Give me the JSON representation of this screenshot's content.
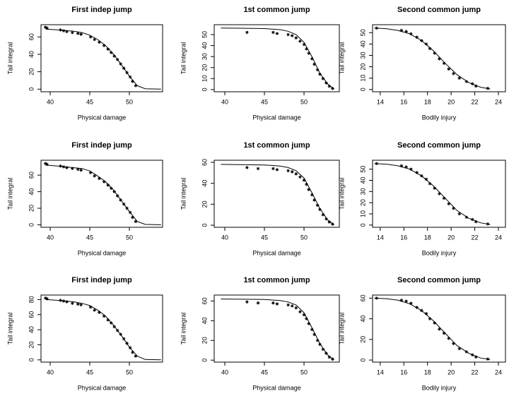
{
  "chart_data": [
    {
      "type": "line",
      "title": "First indep jump",
      "xlabel": "Physical damage",
      "ylabel": "Tail integral",
      "xlim": [
        38.84,
        54.2
      ],
      "ylim": [
        -3,
        74
      ],
      "xticks": [
        40,
        45,
        50
      ],
      "yticks": [
        0,
        20,
        40,
        60
      ],
      "line": {
        "x": [
          39.5,
          41,
          43,
          44,
          45,
          46,
          47,
          48,
          49,
          50,
          51,
          52,
          54
        ],
        "y": [
          69,
          68,
          66.5,
          65,
          62,
          57,
          50,
          40,
          28,
          15,
          4,
          0.5,
          0
        ]
      },
      "points": {
        "x": [
          39.4,
          39.6,
          41.3,
          41.7,
          42.1,
          42.8,
          43.5,
          43.9,
          45.1,
          45.6,
          46.2,
          46.8,
          47.3,
          47.7,
          48.1,
          48.5,
          48.9,
          49.3,
          49.7,
          50.1,
          50.4,
          50.8
        ],
        "y": [
          71,
          70,
          68,
          67,
          66,
          65,
          64,
          63,
          60,
          57,
          54,
          50,
          46,
          42,
          38,
          34,
          29,
          24,
          19,
          14,
          9,
          4
        ]
      }
    },
    {
      "type": "line",
      "title": "1st common jump",
      "xlabel": "Physical damage",
      "ylabel": "Tail integral",
      "xlim": [
        38.66,
        54.46
      ],
      "ylim": [
        -2,
        59
      ],
      "xticks": [
        40,
        45,
        50
      ],
      "yticks": [
        0,
        10,
        20,
        30,
        40,
        50
      ],
      "line": {
        "x": [
          39.5,
          42,
          45,
          47,
          48,
          49,
          50,
          51,
          52,
          53,
          53.8
        ],
        "y": [
          56,
          55.8,
          55.5,
          54.5,
          53,
          50,
          43,
          30,
          15,
          5,
          0.5
        ]
      },
      "points": {
        "x": [
          42.8,
          46.1,
          46.6,
          48,
          48.5,
          49,
          49.5,
          50,
          50.3,
          50.6,
          51,
          51.3,
          51.7,
          52,
          52.4,
          52.8,
          53.2,
          53.6
        ],
        "y": [
          52,
          52,
          51,
          50,
          49,
          47,
          44,
          41,
          37,
          33,
          28,
          23,
          18,
          14,
          10,
          6,
          3,
          1
        ]
      }
    },
    {
      "type": "line",
      "title": "Second common jump",
      "xlabel": "Bodily injury",
      "ylabel": "Tail integral",
      "xlim": [
        13.35,
        24.6
      ],
      "ylim": [
        -2,
        57
      ],
      "xticks": [
        14,
        16,
        18,
        20,
        22,
        24
      ],
      "yticks": [
        0,
        10,
        20,
        30,
        40,
        50
      ],
      "line": {
        "x": [
          13.5,
          14.5,
          15.5,
          16.5,
          17.5,
          18.5,
          19.5,
          20.5,
          21.5,
          22.5,
          23.3
        ],
        "y": [
          54,
          53.5,
          52,
          49,
          43,
          34,
          23,
          13,
          6,
          2,
          0.5
        ]
      },
      "points": {
        "x": [
          13.7,
          15.8,
          16.2,
          16.6,
          17.1,
          17.5,
          17.9,
          18.2,
          18.6,
          19,
          19.4,
          19.8,
          20.2,
          20.7,
          21.3,
          21.8,
          22.1,
          23.1
        ],
        "y": [
          54,
          52,
          51,
          49,
          46,
          43,
          40,
          36,
          32,
          27,
          23,
          18,
          14,
          10,
          7,
          5,
          3,
          1
        ]
      }
    },
    {
      "type": "line",
      "title": "First indep jump",
      "xlabel": "Physical damage",
      "ylabel": "Tail integral",
      "xlim": [
        38.84,
        54.2
      ],
      "ylim": [
        -3,
        78
      ],
      "xticks": [
        40,
        45,
        50
      ],
      "yticks": [
        0,
        20,
        40,
        60
      ],
      "line": {
        "x": [
          39.5,
          41,
          43,
          44,
          45,
          46,
          47,
          48,
          49,
          50,
          51,
          52,
          54
        ],
        "y": [
          72,
          71,
          69,
          68,
          65,
          59,
          52,
          42,
          29,
          16,
          4,
          0.5,
          0
        ]
      },
      "points": {
        "x": [
          39.4,
          39.6,
          41.3,
          41.7,
          42.1,
          42.8,
          43.5,
          43.9,
          45.1,
          45.6,
          46.2,
          46.8,
          47.3,
          47.7,
          48.1,
          48.5,
          48.9,
          49.3,
          49.7,
          50.1,
          50.4,
          50.8
        ],
        "y": [
          74,
          73,
          71,
          70,
          69,
          68,
          67,
          66,
          63,
          59,
          56,
          52,
          48,
          44,
          40,
          35,
          30,
          25,
          20,
          15,
          9,
          4
        ]
      }
    },
    {
      "type": "line",
      "title": "1st common jump",
      "xlabel": "Physical damage",
      "ylabel": "Tail integral",
      "xlim": [
        38.66,
        54.46
      ],
      "ylim": [
        -2,
        62
      ],
      "xticks": [
        40,
        45,
        50
      ],
      "yticks": [
        0,
        20,
        40,
        60
      ],
      "line": {
        "x": [
          39.5,
          42,
          45,
          47,
          48,
          49,
          50,
          51,
          52,
          53,
          53.8
        ],
        "y": [
          58,
          57.8,
          57.5,
          56.5,
          55,
          52,
          45,
          31,
          16,
          5,
          0.5
        ]
      },
      "points": {
        "x": [
          42.8,
          44.2,
          46.1,
          46.6,
          48,
          48.5,
          49,
          49.5,
          50,
          50.3,
          50.6,
          51,
          51.3,
          51.7,
          52,
          52.4,
          52.8,
          53.2,
          53.6
        ],
        "y": [
          55,
          54,
          54,
          53,
          52,
          51,
          49,
          46,
          43,
          39,
          34,
          29,
          24,
          19,
          15,
          10,
          6,
          3,
          1
        ]
      }
    },
    {
      "type": "line",
      "title": "Second common jump",
      "xlabel": "Bodily injury",
      "ylabel": "Tail integral",
      "xlim": [
        13.35,
        24.6
      ],
      "ylim": [
        -2,
        58
      ],
      "xticks": [
        14,
        16,
        18,
        20,
        22,
        24
      ],
      "yticks": [
        0,
        10,
        20,
        30,
        40,
        50
      ],
      "line": {
        "x": [
          13.5,
          14.5,
          15.5,
          16.5,
          17.5,
          18.5,
          19.5,
          20.5,
          21.5,
          22.5,
          23.3
        ],
        "y": [
          55,
          54.5,
          53,
          50,
          44,
          35,
          24,
          13,
          6,
          2,
          0.5
        ]
      },
      "points": {
        "x": [
          13.7,
          15.8,
          16.2,
          16.6,
          17.1,
          17.5,
          17.9,
          18.2,
          18.6,
          19,
          19.4,
          19.8,
          20.2,
          20.7,
          21.3,
          21.8,
          22.1,
          23.1
        ],
        "y": [
          55,
          53,
          52,
          50,
          47,
          44,
          41,
          37,
          33,
          28,
          24,
          19,
          15,
          10,
          7,
          5,
          3,
          1
        ]
      }
    },
    {
      "type": "line",
      "title": "First indep jump",
      "xlabel": "Physical damage",
      "ylabel": "Tail integral",
      "xlim": [
        38.84,
        54.2
      ],
      "ylim": [
        -3,
        86
      ],
      "xticks": [
        40,
        45,
        50
      ],
      "yticks": [
        0,
        20,
        40,
        60,
        80
      ],
      "line": {
        "x": [
          39.5,
          41,
          43,
          44,
          45,
          46,
          47,
          48,
          49,
          50,
          51,
          52,
          54
        ],
        "y": [
          80,
          79,
          77,
          75,
          72,
          66,
          58,
          46,
          32,
          17,
          5,
          0.5,
          0
        ]
      },
      "points": {
        "x": [
          39.4,
          39.6,
          41.3,
          41.7,
          42.1,
          42.8,
          43.5,
          43.9,
          45.1,
          45.6,
          46.2,
          46.8,
          47.3,
          47.7,
          48.1,
          48.5,
          48.9,
          49.3,
          49.7,
          50.1,
          50.4,
          50.8
        ],
        "y": [
          82,
          81,
          79,
          78,
          77,
          75,
          74,
          73,
          70,
          66,
          63,
          58,
          53,
          49,
          44,
          39,
          34,
          28,
          22,
          16,
          10,
          5
        ]
      }
    },
    {
      "type": "line",
      "title": "1st common jump",
      "xlabel": "Physical damage",
      "ylabel": "Tail integral",
      "xlim": [
        38.66,
        54.46
      ],
      "ylim": [
        -2,
        66
      ],
      "xticks": [
        40,
        45,
        50
      ],
      "yticks": [
        0,
        20,
        40,
        60
      ],
      "line": {
        "x": [
          39.5,
          42,
          45,
          47,
          48,
          49,
          50,
          51,
          52,
          53,
          53.8
        ],
        "y": [
          62,
          61.8,
          61.5,
          60.5,
          59,
          56,
          48,
          33,
          17,
          5,
          0.5
        ]
      },
      "points": {
        "x": [
          42.8,
          44.2,
          46.1,
          46.6,
          48,
          48.5,
          49,
          49.5,
          50,
          50.3,
          50.6,
          51,
          51.3,
          51.7,
          52,
          52.4,
          52.8,
          53.2,
          53.6
        ],
        "y": [
          59,
          58,
          58,
          57,
          56,
          55,
          53,
          49,
          46,
          42,
          37,
          31,
          26,
          20,
          16,
          11,
          7,
          3,
          1
        ]
      }
    },
    {
      "type": "line",
      "title": "Second common jump",
      "xlabel": "Bodily injury",
      "ylabel": "Tail integral",
      "xlim": [
        13.35,
        24.6
      ],
      "ylim": [
        -2,
        63
      ],
      "xticks": [
        14,
        16,
        18,
        20,
        22,
        24
      ],
      "yticks": [
        0,
        20,
        40,
        60
      ],
      "line": {
        "x": [
          13.5,
          14.5,
          15.5,
          16.5,
          17.5,
          18.5,
          19.5,
          20.5,
          21.5,
          22.5,
          23.3
        ],
        "y": [
          60,
          59.5,
          58,
          54.5,
          48,
          38,
          26,
          14,
          6.5,
          2,
          0.5
        ]
      },
      "points": {
        "x": [
          13.7,
          15.8,
          16.2,
          16.6,
          17.1,
          17.5,
          17.9,
          18.2,
          18.6,
          19,
          19.4,
          19.8,
          20.2,
          20.7,
          21.3,
          21.8,
          22.1,
          23.1
        ],
        "y": [
          60,
          58,
          57,
          55,
          51,
          48,
          45,
          40,
          36,
          30,
          26,
          21,
          16,
          11,
          8,
          5,
          3,
          1
        ]
      }
    }
  ]
}
